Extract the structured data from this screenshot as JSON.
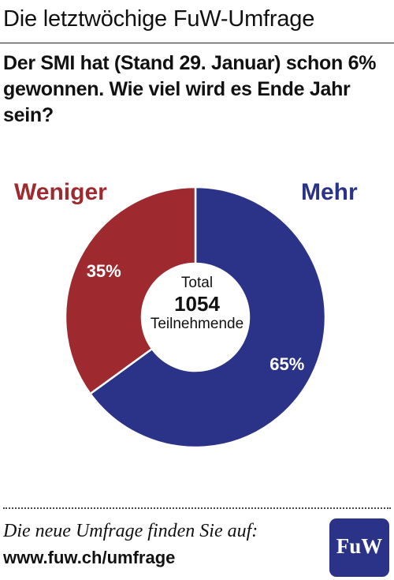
{
  "header": {
    "title": "Die letztwöchige FuW-Umfrage"
  },
  "question": {
    "text": "Der SMI hat (Stand 29. Januar) schon 6% gewonnen. Wie viel wird es Ende Jahr sein?"
  },
  "chart_data": {
    "type": "pie",
    "categories": [
      "Mehr",
      "Weniger"
    ],
    "values": [
      65,
      35
    ],
    "value_labels": [
      "65%",
      "35%"
    ],
    "colors": [
      "#2a3387",
      "#9e2a2f"
    ],
    "center": {
      "line1": "Total",
      "line2": "1054",
      "line3": "Teilnehmende"
    }
  },
  "footer": {
    "line1": "Die neue Umfrage finden Sie auf:",
    "line2": "www.fuw.ch/umfrage",
    "logo_text": "FuW"
  }
}
